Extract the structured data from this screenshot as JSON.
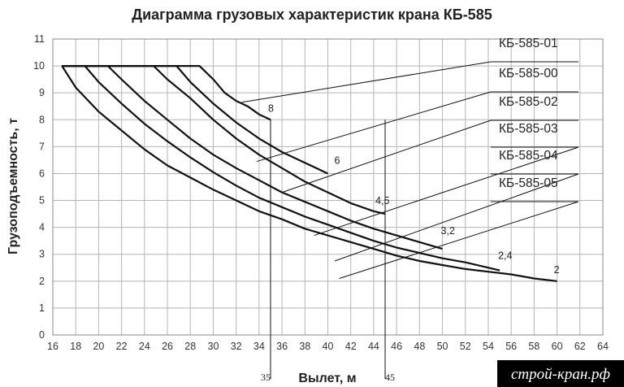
{
  "chart_data": {
    "type": "line",
    "title": "Диаграмма грузовых характеристик крана КБ-585",
    "xlabel": "Вылет, м",
    "ylabel": "Грузоподъемность, т",
    "xlim": [
      16,
      64
    ],
    "ylim": [
      0,
      11
    ],
    "x_ticks": [
      16,
      18,
      20,
      22,
      24,
      26,
      28,
      30,
      32,
      34,
      36,
      38,
      40,
      42,
      44,
      46,
      48,
      50,
      52,
      54,
      56,
      58,
      60,
      62,
      64
    ],
    "y_ticks": [
      0,
      1,
      2,
      3,
      4,
      5,
      6,
      7,
      8,
      9,
      10,
      11
    ],
    "grid": true,
    "legend_position": "right",
    "series": [
      {
        "name": "КБ-585-01",
        "end_label": "8",
        "points": [
          [
            16.8,
            10
          ],
          [
            28.8,
            10
          ],
          [
            30,
            9.5
          ],
          [
            31,
            9.0
          ],
          [
            32,
            8.7
          ],
          [
            33,
            8.5
          ],
          [
            34,
            8.2
          ],
          [
            35,
            8.0
          ]
        ]
      },
      {
        "name": "КБ-585-00",
        "end_label": "6",
        "points": [
          [
            16.8,
            10
          ],
          [
            26.8,
            10
          ],
          [
            28,
            9.4
          ],
          [
            30,
            8.6
          ],
          [
            32,
            7.9
          ],
          [
            34,
            7.3
          ],
          [
            36,
            6.8
          ],
          [
            38,
            6.4
          ],
          [
            40,
            6.0
          ]
        ]
      },
      {
        "name": "КБ-585-02",
        "end_label": "4,5",
        "points": [
          [
            16.8,
            10
          ],
          [
            24.8,
            10
          ],
          [
            26,
            9.5
          ],
          [
            28,
            8.8
          ],
          [
            30,
            8.0
          ],
          [
            32,
            7.3
          ],
          [
            34,
            6.7
          ],
          [
            36,
            6.2
          ],
          [
            38,
            5.7
          ],
          [
            40,
            5.3
          ],
          [
            42,
            4.9
          ],
          [
            44,
            4.6
          ],
          [
            45,
            4.5
          ]
        ]
      },
      {
        "name": "КБ-585-03",
        "end_label": "3,2",
        "points": [
          [
            16.8,
            10
          ],
          [
            20.8,
            10
          ],
          [
            22,
            9.5
          ],
          [
            24,
            8.7
          ],
          [
            26,
            8.0
          ],
          [
            28,
            7.3
          ],
          [
            30,
            6.7
          ],
          [
            32,
            6.2
          ],
          [
            34,
            5.75
          ],
          [
            36,
            5.3
          ],
          [
            38,
            4.95
          ],
          [
            40,
            4.6
          ],
          [
            42,
            4.25
          ],
          [
            44,
            3.95
          ],
          [
            46,
            3.7
          ],
          [
            48,
            3.45
          ],
          [
            50,
            3.2
          ]
        ]
      },
      {
        "name": "КБ-585-04",
        "end_label": "2,4",
        "points": [
          [
            16.8,
            10
          ],
          [
            18.8,
            10
          ],
          [
            20,
            9.4
          ],
          [
            22,
            8.6
          ],
          [
            24,
            7.85
          ],
          [
            26,
            7.2
          ],
          [
            28,
            6.6
          ],
          [
            30,
            6.05
          ],
          [
            32,
            5.55
          ],
          [
            34,
            5.1
          ],
          [
            36,
            4.75
          ],
          [
            38,
            4.4
          ],
          [
            40,
            4.1
          ],
          [
            42,
            3.8
          ],
          [
            44,
            3.5
          ],
          [
            46,
            3.25
          ],
          [
            48,
            3.05
          ],
          [
            50,
            2.85
          ],
          [
            52,
            2.7
          ],
          [
            55,
            2.4
          ]
        ]
      },
      {
        "name": "КБ-585-05",
        "end_label": "2",
        "points": [
          [
            16.8,
            10
          ],
          [
            18,
            9.2
          ],
          [
            20,
            8.3
          ],
          [
            22,
            7.6
          ],
          [
            24,
            6.9
          ],
          [
            26,
            6.3
          ],
          [
            28,
            5.85
          ],
          [
            30,
            5.4
          ],
          [
            32,
            5.0
          ],
          [
            34,
            4.6
          ],
          [
            36,
            4.3
          ],
          [
            38,
            3.95
          ],
          [
            40,
            3.7
          ],
          [
            42,
            3.45
          ],
          [
            44,
            3.2
          ],
          [
            46,
            2.95
          ],
          [
            48,
            2.75
          ],
          [
            50,
            2.6
          ],
          [
            52,
            2.45
          ],
          [
            54,
            2.35
          ],
          [
            56,
            2.25
          ],
          [
            58,
            2.1
          ],
          [
            60,
            2.0
          ]
        ]
      }
    ],
    "markers": [
      {
        "label": "35",
        "x": 35
      },
      {
        "label": "45",
        "x": 45
      }
    ]
  },
  "watermark": "строй-кран.рф"
}
